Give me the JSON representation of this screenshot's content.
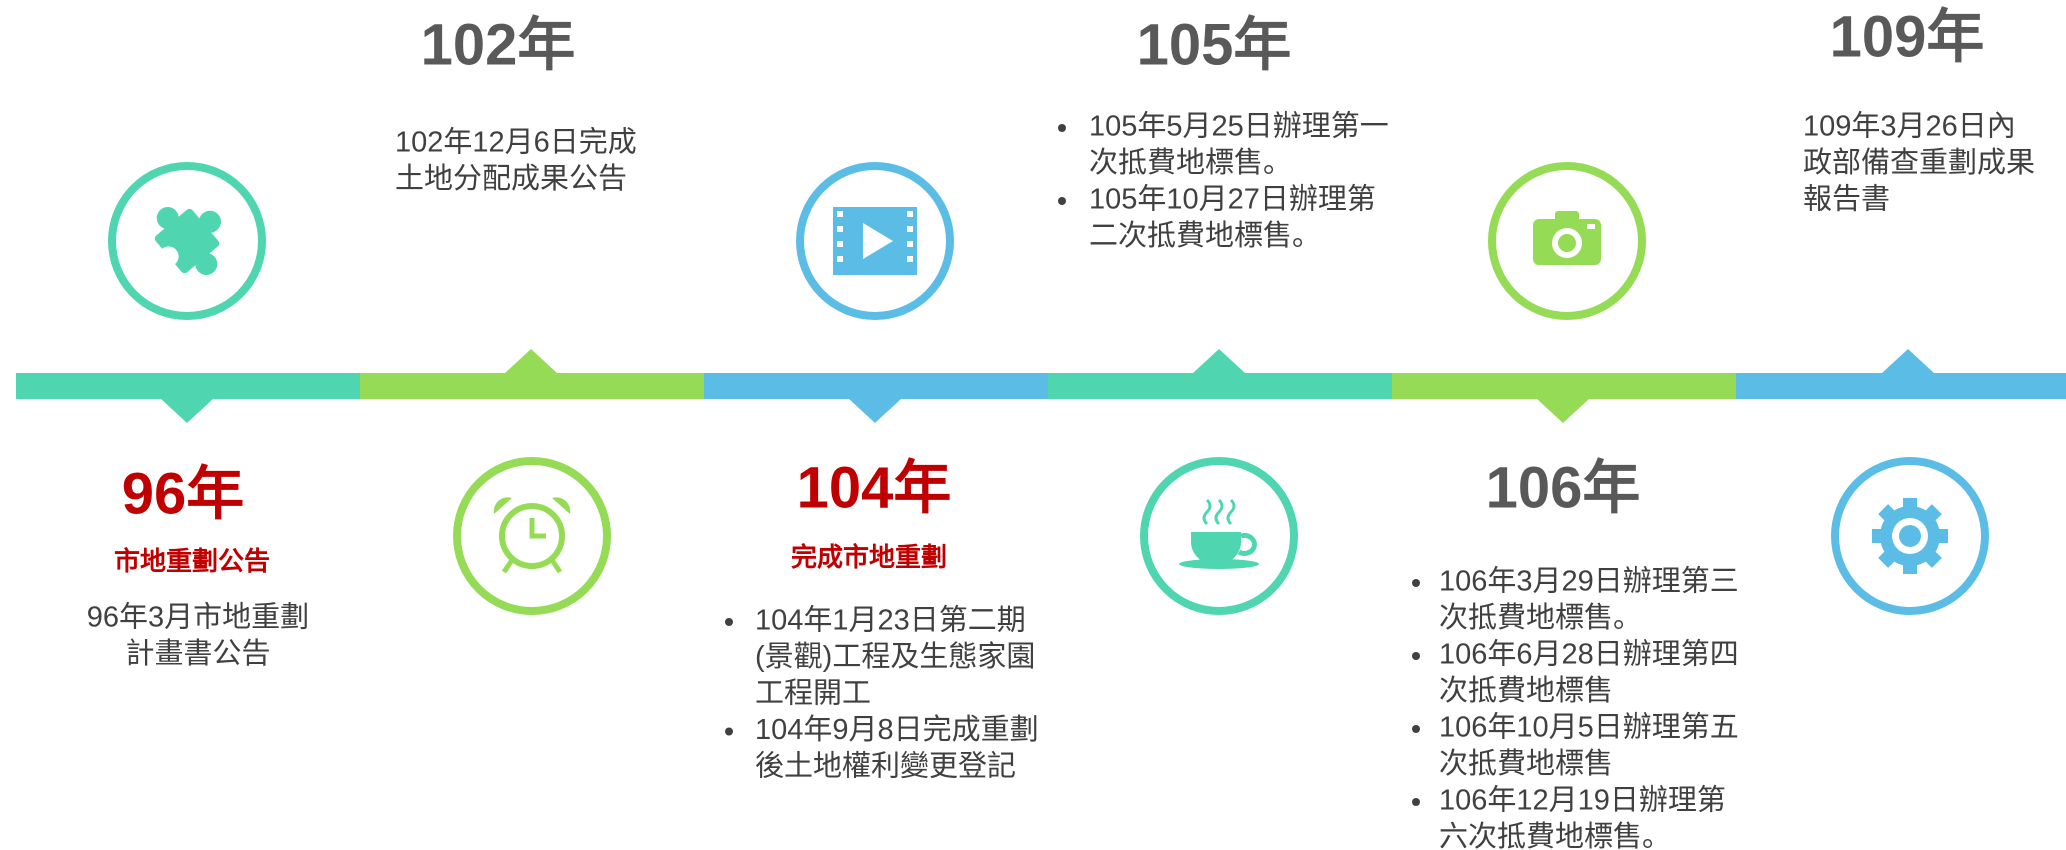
{
  "events": [
    {
      "year": "96年",
      "subtitle": "市地重劃公告",
      "lines": [
        "96年3月市地重劃",
        "計畫書公告"
      ]
    },
    {
      "year": "102年",
      "lines": [
        "102年12月6日完成",
        "土地分配成果公告"
      ]
    },
    {
      "year": "104年",
      "subtitle": "完成市地重劃",
      "bullets": [
        [
          "104年1月23日第二期",
          "(景觀)工程及生態家園",
          "工程開工"
        ],
        [
          "104年9月8日完成重劃",
          "後土地權利變更登記"
        ]
      ]
    },
    {
      "year": "105年",
      "bullets": [
        [
          "105年5月25日辦理第一",
          "次抵費地標售。"
        ],
        [
          "105年10月27日辦理第",
          "二次抵費地標售。"
        ]
      ]
    },
    {
      "year": "106年",
      "bullets": [
        [
          "106年3月29日辦理第三",
          "次抵費地標售。"
        ],
        [
          "106年6月28日辦理第四",
          "次抵費地標售"
        ],
        [
          "106年10月5日辦理第五",
          "次抵費地標售"
        ],
        [
          "106年12月19日辦理第",
          "六次抵費地標售。"
        ]
      ]
    },
    {
      "year": "109年",
      "lines": [
        "109年3月26日內",
        "政部備查重劃成果",
        "報告書"
      ]
    }
  ]
}
